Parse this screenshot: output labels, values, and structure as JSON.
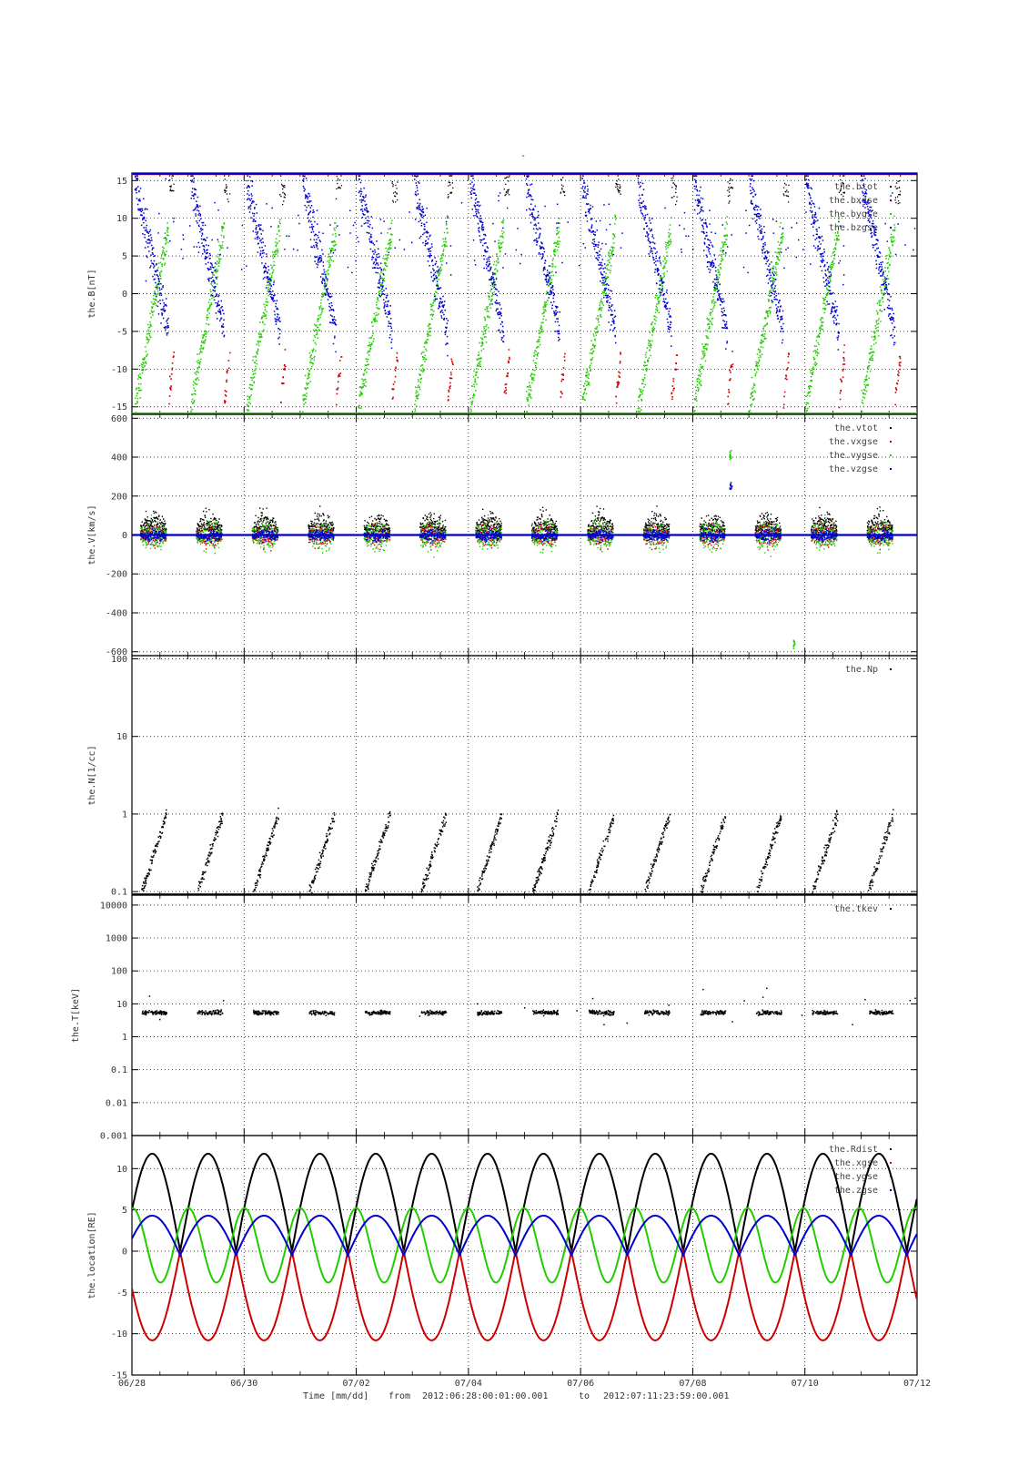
{
  "figure": {
    "title": "-",
    "footer": {
      "time_label": "Time [mm/dd]",
      "from_label": "from",
      "from_value": "2012:06:28:00:01:00.001",
      "to_label": "to",
      "to_value": "2012:07:11:23:59:00.001"
    },
    "x_axis": {
      "start_day": 0,
      "end_day": 14,
      "ticks": [
        {
          "day": 0,
          "label": "06/28"
        },
        {
          "day": 2,
          "label": "06/30"
        },
        {
          "day": 4,
          "label": "07/02"
        },
        {
          "day": 6,
          "label": "07/04"
        },
        {
          "day": 8,
          "label": "07/06"
        },
        {
          "day": 10,
          "label": "07/08"
        },
        {
          "day": 12,
          "label": "07/10"
        },
        {
          "day": 14,
          "label": "07/12"
        }
      ]
    }
  },
  "colors": {
    "black": "#000000",
    "red": "#cc0000",
    "green": "#22cc00",
    "blue": "#0000cc"
  },
  "chart_data": [
    {
      "type": "scatter",
      "ylabel": "the.B[nT]",
      "scale": "linear",
      "ylim": [
        -16,
        16
      ],
      "yticks": [
        -15,
        -10,
        -5,
        0,
        5,
        10,
        15
      ],
      "legend": [
        "the.btot",
        "the.bxgse",
        "the.bygse",
        "the.bzgse"
      ],
      "series": [
        {
          "name": "the.btot",
          "color": "black",
          "description": "mostly above +16 nT, clipped at top of panel"
        },
        {
          "name": "the.bxgse",
          "color": "red",
          "description": "mostly below -16 nT, brief excursions near perigee"
        },
        {
          "name": "the.bygse",
          "color": "green",
          "description": "ramps from about -15 to +10 nT each orbit"
        },
        {
          "name": "the.bzgse",
          "color": "blue",
          "description": "decreases from +15 to about -5 nT each orbit"
        }
      ]
    },
    {
      "type": "scatter",
      "ylabel": "the.V[km/s]",
      "scale": "linear",
      "ylim": [
        -620,
        620
      ],
      "yticks": [
        -600,
        -400,
        -200,
        0,
        200,
        400,
        600
      ],
      "legend": [
        "the.vtot",
        "the.vxgse",
        "the.vygse",
        "the.vzgse"
      ],
      "series": [
        {
          "name": "the.vtot",
          "color": "black"
        },
        {
          "name": "the.vxgse",
          "color": "red"
        },
        {
          "name": "the.vygse",
          "color": "green"
        },
        {
          "name": "the.vzgse",
          "color": "blue"
        }
      ],
      "notable_points": [
        {
          "day": 10.66,
          "value": 420,
          "series": "the.vygse"
        },
        {
          "day": 10.66,
          "value": 250,
          "series": "the.vzgse"
        },
        {
          "day": 11.8,
          "value": -560,
          "series": "the.vygse"
        }
      ]
    },
    {
      "type": "scatter",
      "ylabel": "the.N[1/cc]",
      "scale": "log",
      "ylim": [
        0.09,
        110
      ],
      "yticks": [
        0.1,
        1,
        10,
        100
      ],
      "ytick_labels": [
        "0.1",
        "1",
        "10",
        "100"
      ],
      "legend": [
        "the.Np"
      ],
      "series": [
        {
          "name": "the.Np",
          "color": "black",
          "description": "rises from about 0.1 to about 1 /cc each orbit"
        }
      ]
    },
    {
      "type": "scatter",
      "ylabel": "the.T[keV]",
      "scale": "log",
      "ylim": [
        0.001,
        20000
      ],
      "yticks": [
        0.001,
        0.01,
        0.1,
        1,
        10,
        100,
        1000,
        10000
      ],
      "ytick_labels": [
        "0.001",
        "0.01",
        "0.1",
        "1",
        "10",
        "100",
        "1000",
        "10000"
      ],
      "legend": [
        "the.tkev"
      ],
      "series": [
        {
          "name": "the.tkev",
          "color": "black",
          "description": "clusters near 4 to 8 keV"
        }
      ]
    },
    {
      "type": "line",
      "ylabel": "the.location[RE]",
      "scale": "linear",
      "ylim": [
        -15,
        14
      ],
      "yticks": [
        -15,
        -10,
        -5,
        0,
        5,
        10
      ],
      "legend": [
        "the.Rdist",
        "the.xgse",
        "the.ygse",
        "the.zgse"
      ],
      "orbit_period_days": 0.9966,
      "perigee_day": 0.86,
      "series": [
        {
          "name": "the.Rdist",
          "color": "black",
          "min": 0,
          "max": 11.8
        },
        {
          "name": "the.xgse",
          "color": "red",
          "min": -10.8,
          "max": 0
        },
        {
          "name": "the.ygse",
          "color": "green",
          "min": -3.8,
          "max": 5.2
        },
        {
          "name": "the.zgse",
          "color": "blue",
          "min": -0.5,
          "max": 4.3
        }
      ]
    }
  ]
}
